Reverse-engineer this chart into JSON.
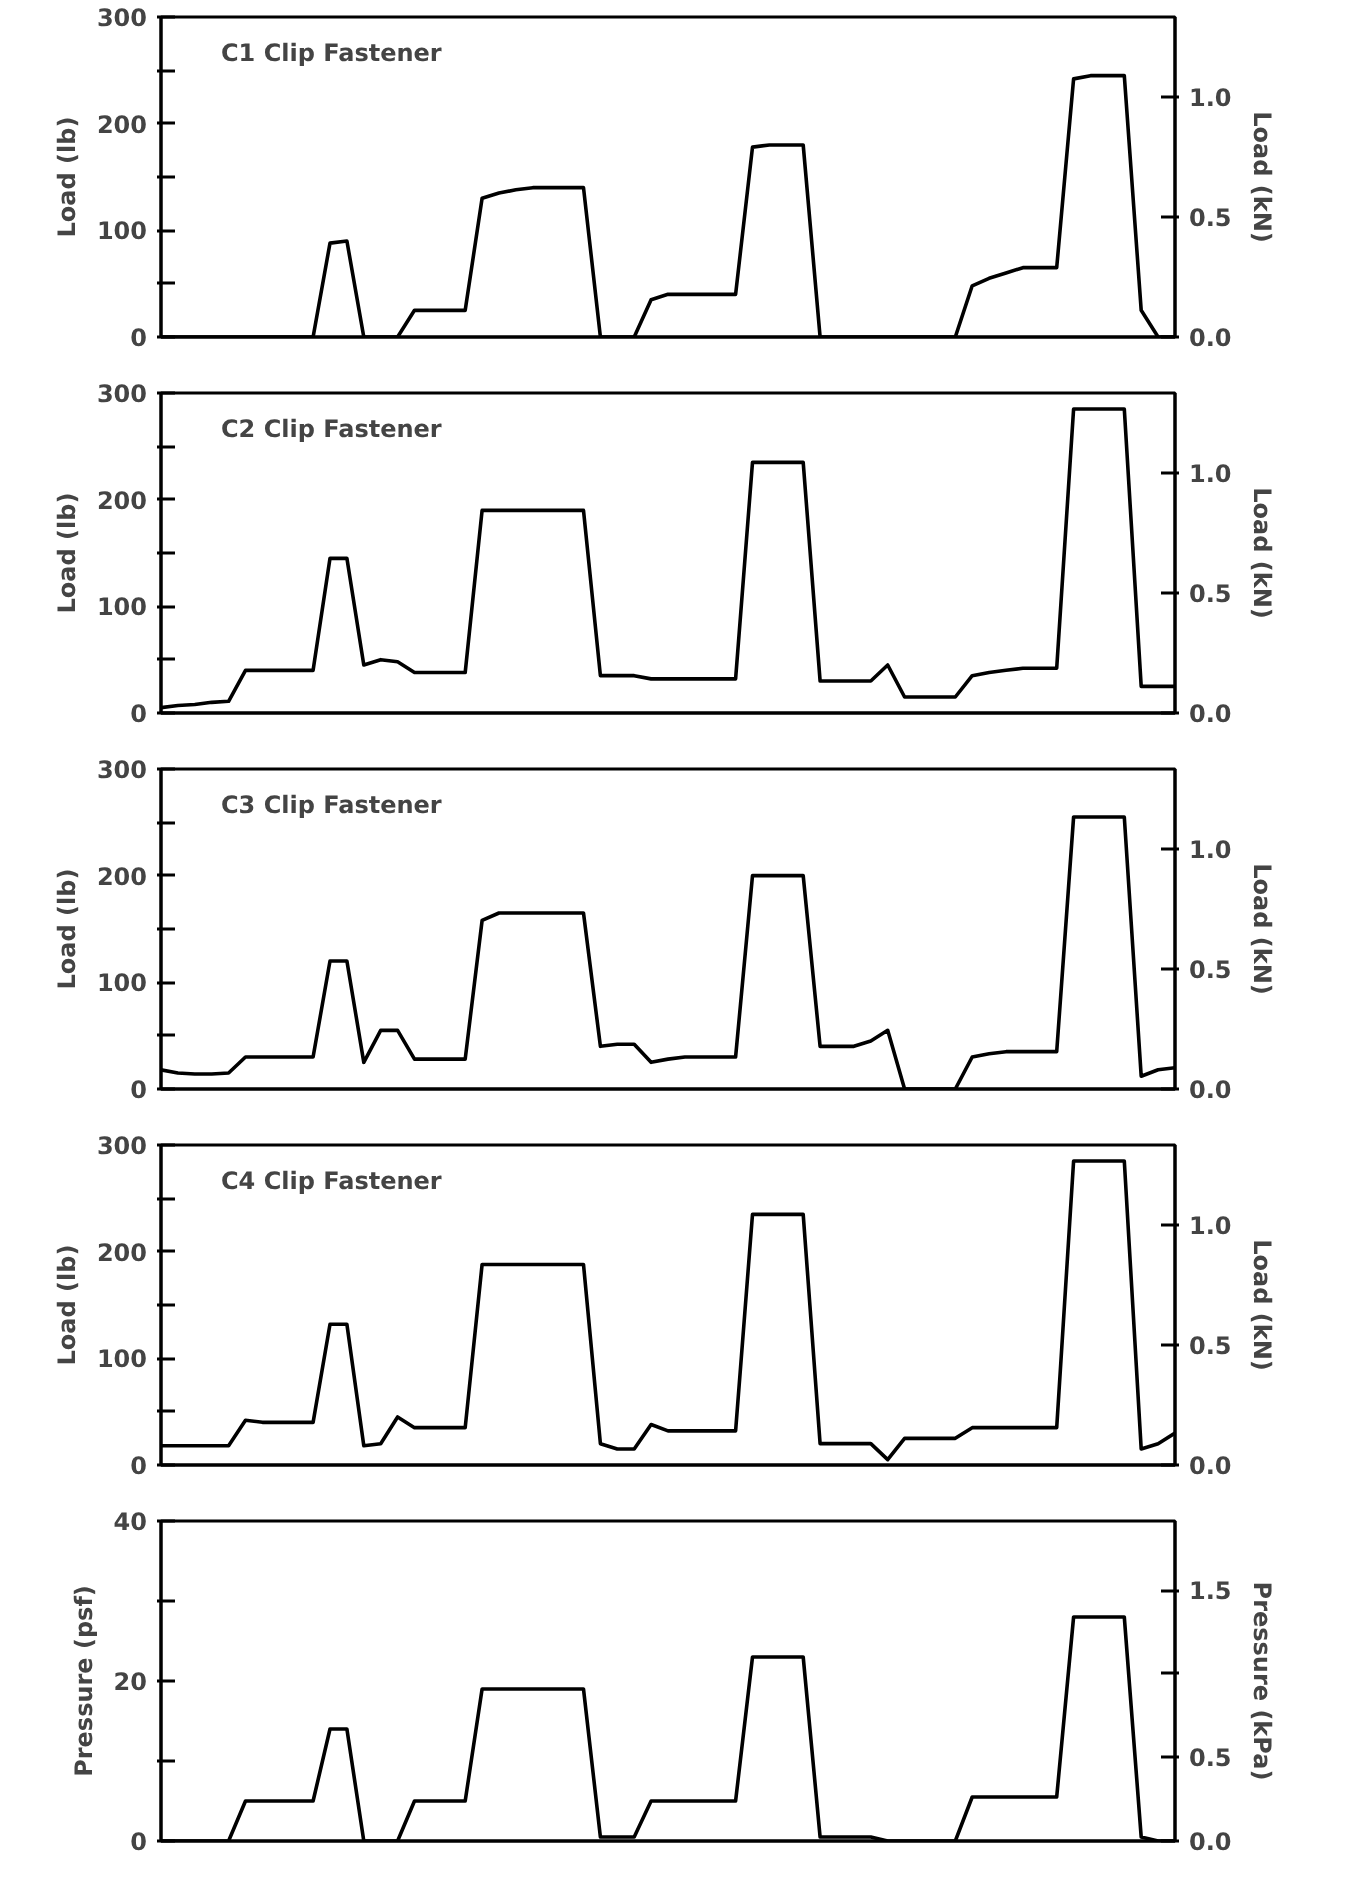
{
  "chart_data": [
    {
      "type": "line",
      "annotations": [
        "C1 Clip Fastener"
      ],
      "ylabel": "Load (lb)",
      "y2label": "Load (kN)",
      "categories": [
        null,
        null,
        null,
        null,
        null,
        null,
        null,
        null,
        null,
        null,
        null,
        null,
        null,
        null,
        null,
        null,
        null,
        null,
        null,
        null,
        null,
        null,
        null,
        null,
        null,
        null,
        null,
        null,
        null,
        null,
        null,
        null,
        null,
        null,
        null,
        null,
        null,
        null,
        null,
        null,
        null,
        null,
        null,
        null,
        null,
        null,
        null,
        null,
        null,
        null,
        null,
        null,
        null,
        null,
        null,
        null,
        null,
        null,
        null,
        null,
        null
      ],
      "ylim": [
        0,
        300
      ],
      "yticks": [
        0,
        {
          "value": 50,
          "label": null
        },
        100,
        {
          "value": 150,
          "label": null
        },
        200,
        {
          "value": 250,
          "label": null
        },
        300
      ],
      "y2lim": [
        0,
        1.3345
      ],
      "y2ticks": [
        {
          "value": 0,
          "label": "0.0"
        },
        {
          "value": 0.5,
          "label": "0.5"
        },
        {
          "value": 1,
          "label": "1.0"
        }
      ],
      "series": [
        {
          "color": "#000000",
          "values": [
            0,
            0,
            0,
            0,
            0,
            0,
            0,
            0,
            0,
            0,
            88,
            90,
            0,
            0,
            0,
            25,
            25,
            25,
            25,
            130,
            135,
            138,
            140,
            140,
            140,
            140,
            0,
            0,
            0,
            35,
            40,
            40,
            40,
            40,
            40,
            178,
            180,
            180,
            180,
            0,
            0,
            0,
            0,
            0,
            0,
            0,
            0,
            0,
            48,
            55,
            60,
            65,
            65,
            65,
            242,
            245,
            245,
            245,
            25,
            0,
            0
          ]
        }
      ]
    },
    {
      "type": "line",
      "annotations": [
        "C2 Clip Fastener"
      ],
      "ylabel": "Load (lb)",
      "y2label": "Load (kN)",
      "categories": [
        null,
        null,
        null,
        null,
        null,
        null,
        null,
        null,
        null,
        null,
        null,
        null,
        null,
        null,
        null,
        null,
        null,
        null,
        null,
        null,
        null,
        null,
        null,
        null,
        null,
        null,
        null,
        null,
        null,
        null,
        null,
        null,
        null,
        null,
        null,
        null,
        null,
        null,
        null,
        null,
        null,
        null,
        null,
        null,
        null,
        null,
        null,
        null,
        null,
        null,
        null,
        null,
        null,
        null,
        null,
        null,
        null,
        null,
        null,
        null,
        null
      ],
      "ylim": [
        0,
        300
      ],
      "yticks": [
        0,
        {
          "value": 50,
          "label": null
        },
        100,
        {
          "value": 150,
          "label": null
        },
        200,
        {
          "value": 250,
          "label": null
        },
        300
      ],
      "y2lim": [
        0,
        1.3345
      ],
      "y2ticks": [
        {
          "value": 0,
          "label": "0.0"
        },
        {
          "value": 0.5,
          "label": "0.5"
        },
        {
          "value": 1,
          "label": "1.0"
        }
      ],
      "series": [
        {
          "color": "#000000",
          "values": [
            5,
            7,
            8,
            10,
            11,
            40,
            40,
            40,
            40,
            40,
            145,
            145,
            45,
            50,
            48,
            38,
            38,
            38,
            38,
            190,
            190,
            190,
            190,
            190,
            190,
            190,
            35,
            35,
            35,
            32,
            32,
            32,
            32,
            32,
            32,
            235,
            235,
            235,
            235,
            30,
            30,
            30,
            30,
            45,
            15,
            15,
            15,
            15,
            35,
            38,
            40,
            42,
            42,
            42,
            285,
            285,
            285,
            285,
            25,
            25,
            25
          ]
        }
      ]
    },
    {
      "type": "line",
      "annotations": [
        "C3 Clip Fastener"
      ],
      "ylabel": "Load (lb)",
      "y2label": "Load (kN)",
      "categories": [
        null,
        null,
        null,
        null,
        null,
        null,
        null,
        null,
        null,
        null,
        null,
        null,
        null,
        null,
        null,
        null,
        null,
        null,
        null,
        null,
        null,
        null,
        null,
        null,
        null,
        null,
        null,
        null,
        null,
        null,
        null,
        null,
        null,
        null,
        null,
        null,
        null,
        null,
        null,
        null,
        null,
        null,
        null,
        null,
        null,
        null,
        null,
        null,
        null,
        null,
        null,
        null,
        null,
        null,
        null,
        null,
        null,
        null,
        null,
        null,
        null
      ],
      "ylim": [
        0,
        300
      ],
      "yticks": [
        0,
        {
          "value": 50,
          "label": null
        },
        100,
        {
          "value": 150,
          "label": null
        },
        200,
        {
          "value": 250,
          "label": null
        },
        300
      ],
      "y2lim": [
        0,
        1.3345
      ],
      "y2ticks": [
        {
          "value": 0,
          "label": "0.0"
        },
        {
          "value": 0.5,
          "label": "0.5"
        },
        {
          "value": 1,
          "label": "1.0"
        }
      ],
      "series": [
        {
          "color": "#000000",
          "values": [
            18,
            15,
            14,
            14,
            15,
            30,
            30,
            30,
            30,
            30,
            120,
            120,
            25,
            55,
            55,
            28,
            28,
            28,
            28,
            158,
            165,
            165,
            165,
            165,
            165,
            165,
            40,
            42,
            42,
            25,
            28,
            30,
            30,
            30,
            30,
            200,
            200,
            200,
            200,
            40,
            40,
            40,
            45,
            55,
            0,
            0,
            0,
            0,
            30,
            33,
            35,
            35,
            35,
            35,
            255,
            255,
            255,
            255,
            12,
            18,
            20
          ]
        }
      ]
    },
    {
      "type": "line",
      "annotations": [
        "C4 Clip Fastener"
      ],
      "ylabel": "Load (lb)",
      "y2label": "Load (kN)",
      "categories": [
        null,
        null,
        null,
        null,
        null,
        null,
        null,
        null,
        null,
        null,
        null,
        null,
        null,
        null,
        null,
        null,
        null,
        null,
        null,
        null,
        null,
        null,
        null,
        null,
        null,
        null,
        null,
        null,
        null,
        null,
        null,
        null,
        null,
        null,
        null,
        null,
        null,
        null,
        null,
        null,
        null,
        null,
        null,
        null,
        null,
        null,
        null,
        null,
        null,
        null,
        null,
        null,
        null,
        null,
        null,
        null,
        null,
        null,
        null,
        null,
        null
      ],
      "ylim": [
        0,
        300
      ],
      "yticks": [
        0,
        {
          "value": 50,
          "label": null
        },
        100,
        {
          "value": 150,
          "label": null
        },
        200,
        {
          "value": 250,
          "label": null
        },
        300
      ],
      "y2lim": [
        0,
        1.3345
      ],
      "y2ticks": [
        {
          "value": 0,
          "label": "0.0"
        },
        {
          "value": 0.5,
          "label": "0.5"
        },
        {
          "value": 1,
          "label": "1.0"
        }
      ],
      "series": [
        {
          "color": "#000000",
          "values": [
            18,
            18,
            18,
            18,
            18,
            42,
            40,
            40,
            40,
            40,
            132,
            132,
            18,
            20,
            45,
            35,
            35,
            35,
            35,
            188,
            188,
            188,
            188,
            188,
            188,
            188,
            20,
            15,
            15,
            38,
            32,
            32,
            32,
            32,
            32,
            235,
            235,
            235,
            235,
            20,
            20,
            20,
            20,
            5,
            25,
            25,
            25,
            25,
            35,
            35,
            35,
            35,
            35,
            35,
            285,
            285,
            285,
            285,
            15,
            20,
            30
          ]
        }
      ]
    },
    {
      "type": "line",
      "ylabel": "Pressure (psf)",
      "y2label": "Pressure (kPa)",
      "categories": [
        null,
        null,
        null,
        null,
        null,
        null,
        null,
        null,
        null,
        null,
        null,
        null,
        null,
        null,
        null,
        null,
        null,
        null,
        null,
        null,
        null,
        null,
        null,
        null,
        null,
        null,
        null,
        null,
        null,
        null,
        null,
        null,
        null,
        null,
        null,
        null,
        null,
        null,
        null,
        null,
        null,
        null,
        null,
        null,
        null,
        null,
        null,
        null,
        null,
        null,
        null,
        null,
        null,
        null,
        null,
        null,
        null,
        null,
        null,
        null,
        null
      ],
      "ylim": [
        0,
        40
      ],
      "yticks": [
        0,
        {
          "value": 10,
          "label": null
        },
        20,
        {
          "value": 30,
          "label": null
        },
        40
      ],
      "y2lim": [
        0,
        1.915
      ],
      "y2ticks": [
        {
          "value": 0,
          "label": "0.0"
        },
        {
          "value": 0.5,
          "label": "0.5"
        },
        {
          "value": 1,
          "label": null
        },
        {
          "value": 1.5,
          "label": "1.5"
        }
      ],
      "series": [
        {
          "color": "#000000",
          "values": [
            0,
            0,
            0,
            0,
            0,
            5,
            5,
            5,
            5,
            5,
            14,
            14,
            0,
            0,
            0,
            5,
            5,
            5,
            5,
            19,
            19,
            19,
            19,
            19,
            19,
            19,
            0.5,
            0.5,
            0.5,
            5,
            5,
            5,
            5,
            5,
            5,
            23,
            23,
            23,
            23,
            0.5,
            0.5,
            0.5,
            0.5,
            0,
            0,
            0,
            0,
            0,
            5.5,
            5.5,
            5.5,
            5.5,
            5.5,
            5.5,
            28,
            28,
            28,
            28,
            0.5,
            0,
            0
          ]
        }
      ]
    }
  ]
}
